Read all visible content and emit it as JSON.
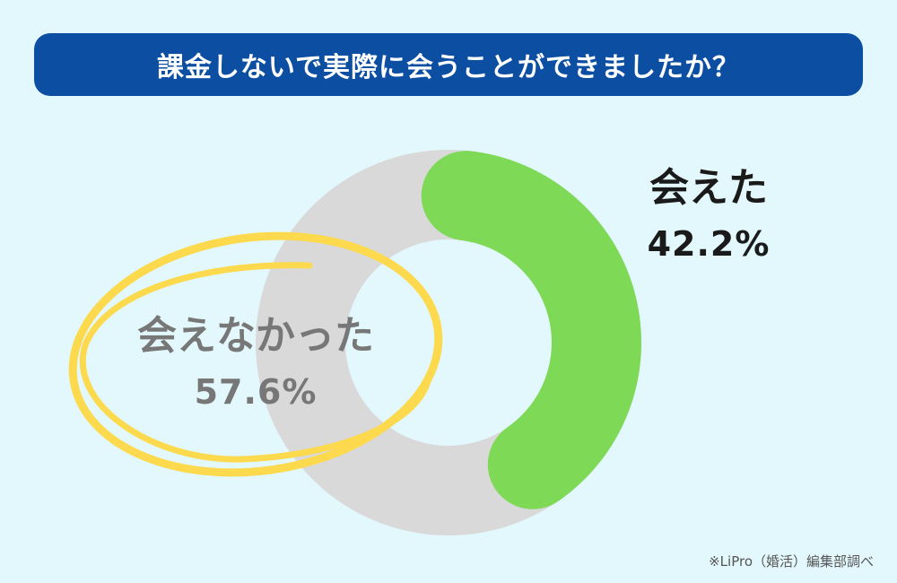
{
  "title": "課金しないで実際に会うことができましたか？",
  "footnote": "※LiPro（婚活）編集部調べ",
  "colors": {
    "background": "#e3f8fc",
    "title_bar": "#0b4ea2",
    "met": "#7ed957",
    "not_met": "#d9d9d9",
    "highlight_circle": "#fcd94d"
  },
  "chart_data": {
    "type": "pie",
    "style": "donut",
    "title": "課金しないで実際に会うことができましたか？",
    "categories": [
      "会えた",
      "会えなかった"
    ],
    "values": [
      42.2,
      57.6
    ],
    "value_labels": [
      "42.2%",
      "57.6%"
    ],
    "unit": "%",
    "highlighted_category": "会えなかった"
  }
}
